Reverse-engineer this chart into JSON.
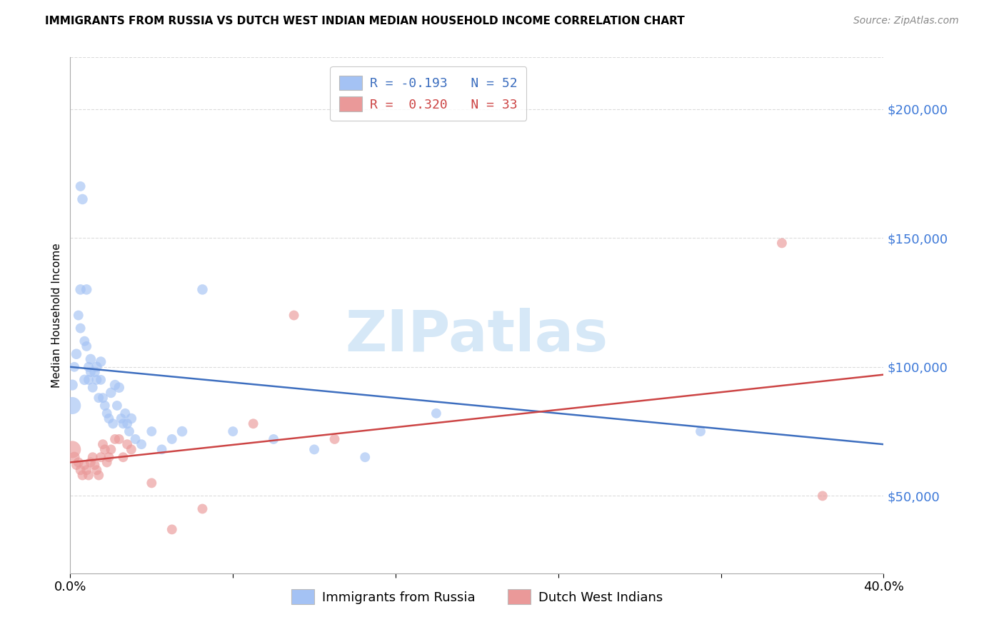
{
  "title": "IMMIGRANTS FROM RUSSIA VS DUTCH WEST INDIAN MEDIAN HOUSEHOLD INCOME CORRELATION CHART",
  "source": "Source: ZipAtlas.com",
  "ylabel": "Median Household Income",
  "ytick_values": [
    50000,
    100000,
    150000,
    200000
  ],
  "ytick_labels": [
    "$50,000",
    "$100,000",
    "$150,000",
    "$200,000"
  ],
  "xlim": [
    0.0,
    0.4
  ],
  "ylim": [
    20000,
    220000
  ],
  "legend_blue_label": "R = -0.193   N = 52",
  "legend_pink_label": "R =  0.320   N = 33",
  "legend_blue_label2": "Immigrants from Russia",
  "legend_pink_label2": "Dutch West Indians",
  "blue_color": "#a4c2f4",
  "pink_color": "#ea9999",
  "blue_scatter_alpha": 0.65,
  "pink_scatter_alpha": 0.65,
  "blue_line_color": "#3d6ebf",
  "pink_line_color": "#cc4444",
  "watermark_text": "ZIPatlas",
  "watermark_color": "#d6e8f7",
  "blue_scatter_x": [
    0.001,
    0.002,
    0.003,
    0.004,
    0.005,
    0.005,
    0.005,
    0.006,
    0.007,
    0.007,
    0.008,
    0.008,
    0.009,
    0.009,
    0.01,
    0.01,
    0.011,
    0.012,
    0.013,
    0.013,
    0.014,
    0.015,
    0.015,
    0.016,
    0.017,
    0.018,
    0.019,
    0.02,
    0.021,
    0.022,
    0.023,
    0.024,
    0.025,
    0.026,
    0.027,
    0.028,
    0.029,
    0.03,
    0.032,
    0.035,
    0.04,
    0.045,
    0.05,
    0.055,
    0.065,
    0.08,
    0.1,
    0.12,
    0.145,
    0.18,
    0.31,
    0.001
  ],
  "blue_scatter_y": [
    93000,
    100000,
    105000,
    120000,
    130000,
    115000,
    170000,
    165000,
    110000,
    95000,
    108000,
    130000,
    100000,
    95000,
    103000,
    98000,
    92000,
    98000,
    100000,
    95000,
    88000,
    102000,
    95000,
    88000,
    85000,
    82000,
    80000,
    90000,
    78000,
    93000,
    85000,
    92000,
    80000,
    78000,
    82000,
    78000,
    75000,
    80000,
    72000,
    70000,
    75000,
    68000,
    72000,
    75000,
    130000,
    75000,
    72000,
    68000,
    65000,
    82000,
    75000,
    85000
  ],
  "blue_scatter_sizes": [
    120,
    100,
    110,
    100,
    110,
    100,
    100,
    110,
    100,
    110,
    100,
    110,
    100,
    100,
    110,
    100,
    100,
    110,
    110,
    100,
    100,
    110,
    100,
    100,
    100,
    100,
    100,
    110,
    100,
    110,
    100,
    110,
    100,
    100,
    100,
    100,
    100,
    110,
    100,
    100,
    100,
    100,
    100,
    110,
    110,
    100,
    100,
    100,
    100,
    100,
    100,
    300
  ],
  "pink_scatter_x": [
    0.001,
    0.002,
    0.003,
    0.004,
    0.005,
    0.006,
    0.007,
    0.008,
    0.009,
    0.01,
    0.011,
    0.012,
    0.013,
    0.014,
    0.015,
    0.016,
    0.017,
    0.018,
    0.019,
    0.02,
    0.022,
    0.024,
    0.026,
    0.028,
    0.03,
    0.04,
    0.05,
    0.065,
    0.09,
    0.11,
    0.13,
    0.35,
    0.37
  ],
  "pink_scatter_y": [
    68000,
    65000,
    62000,
    63000,
    60000,
    58000,
    62000,
    60000,
    58000,
    63000,
    65000,
    62000,
    60000,
    58000,
    65000,
    70000,
    68000,
    63000,
    65000,
    68000,
    72000,
    72000,
    65000,
    70000,
    68000,
    55000,
    37000,
    45000,
    78000,
    120000,
    72000,
    148000,
    50000
  ],
  "pink_scatter_sizes": [
    300,
    120,
    100,
    100,
    100,
    100,
    100,
    100,
    100,
    100,
    100,
    100,
    100,
    100,
    100,
    100,
    100,
    100,
    100,
    100,
    100,
    100,
    100,
    100,
    100,
    100,
    100,
    100,
    100,
    100,
    100,
    100,
    100
  ],
  "blue_trendline_x": [
    0.0,
    0.4
  ],
  "blue_trendline_y": [
    100000,
    70000
  ],
  "pink_trendline_x": [
    0.0,
    0.4
  ],
  "pink_trendline_y": [
    63000,
    97000
  ],
  "xtick_positions": [
    0.0,
    0.08,
    0.16,
    0.24,
    0.32,
    0.4
  ],
  "xtick_labels": [
    "0.0%",
    "",
    "",
    "",
    "",
    "40.0%"
  ],
  "grid_color": "#cccccc",
  "grid_style": "--",
  "grid_alpha": 0.7,
  "spine_color": "#aaaaaa",
  "title_fontsize": 11,
  "source_fontsize": 10,
  "ytick_fontsize": 13,
  "xtick_fontsize": 13,
  "legend_fontsize": 13,
  "ylabel_fontsize": 11,
  "blue_text_color": "#3c6ebf",
  "pink_text_color": "#cc4444",
  "ytick_color": "#3c78d8"
}
